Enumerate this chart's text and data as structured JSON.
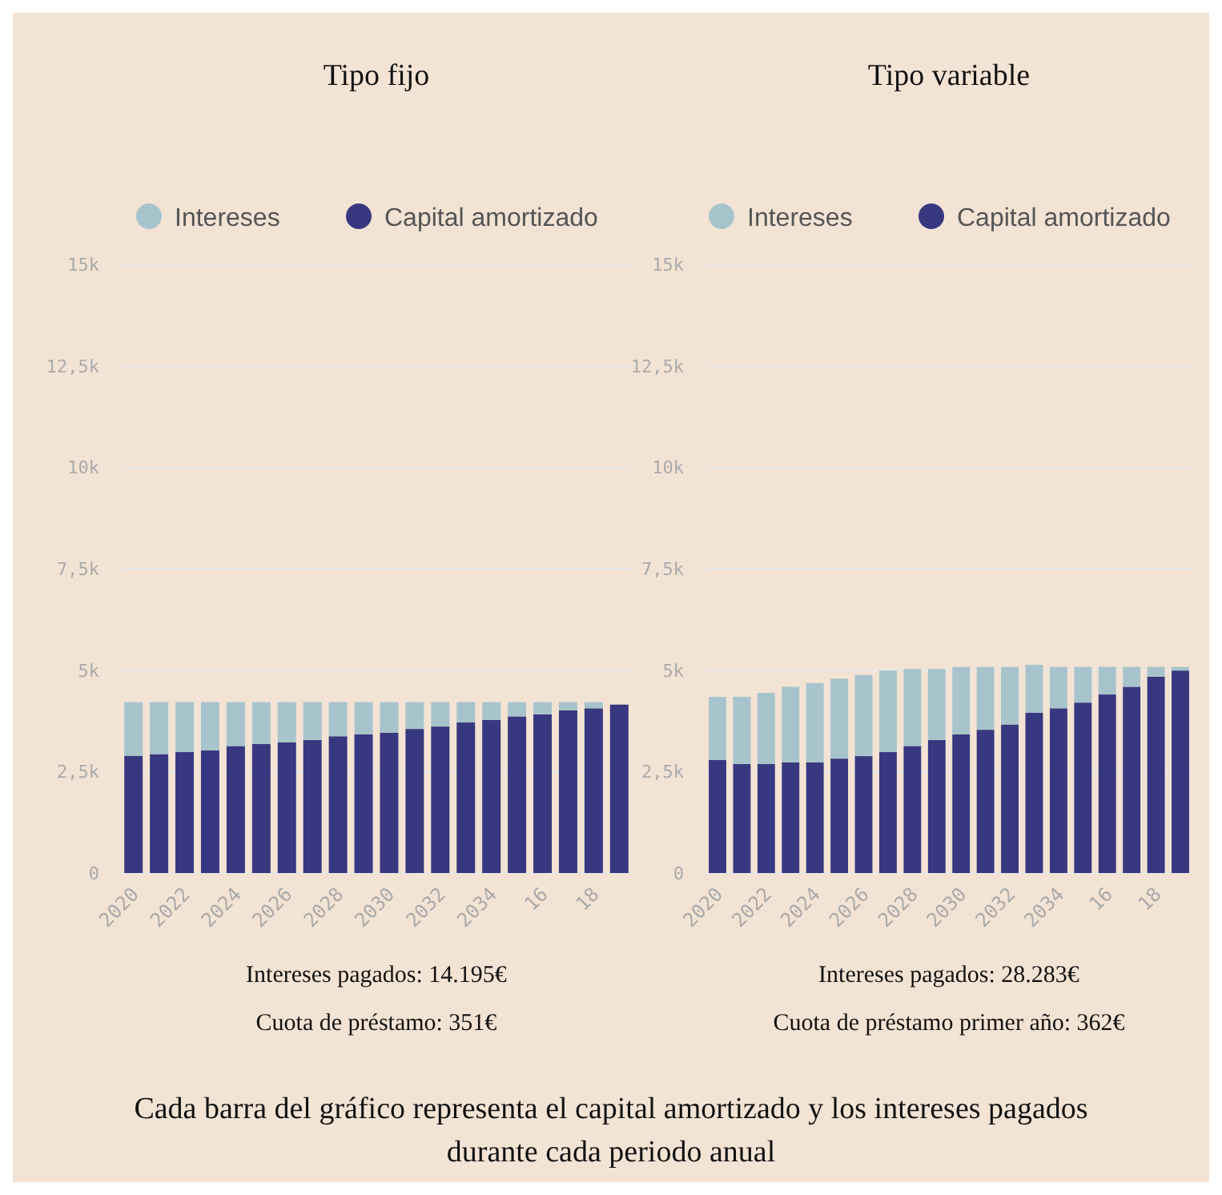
{
  "chart_data": [
    {
      "type": "bar",
      "title": "Tipo fijo",
      "categories": [
        "2020",
        null,
        "2022",
        null,
        "2024",
        null,
        "2026",
        null,
        "2028",
        null,
        "2030",
        null,
        "2032",
        null,
        "2034",
        null,
        "16",
        null,
        "18",
        null
      ],
      "stacked": true,
      "legend": "top",
      "grid": "y",
      "ylim": [
        0,
        15000
      ],
      "yticks": [
        0,
        {
          "value": 2500,
          "label": "2,5k"
        },
        {
          "value": 5000,
          "label": "5k"
        },
        {
          "value": 7500,
          "label": "7,5k"
        },
        {
          "value": 10000,
          "label": "10k"
        },
        {
          "value": 12500,
          "label": "12,5k"
        },
        {
          "value": 15000,
          "label": "15k"
        }
      ],
      "series": [
        {
          "name": "Capital amortizado",
          "color": "#383880",
          "values": [
            2890,
            2930,
            2980,
            3020,
            3130,
            3180,
            3220,
            3280,
            3370,
            3420,
            3460,
            3550,
            3610,
            3710,
            3770,
            3860,
            3910,
            4010,
            4060,
            4150
          ]
        },
        {
          "name": "Intereses",
          "color": "#a7c4cc",
          "values": [
            1320,
            1280,
            1230,
            1190,
            1080,
            1030,
            990,
            930,
            840,
            790,
            750,
            660,
            600,
            500,
            440,
            350,
            300,
            200,
            150,
            null
          ]
        }
      ],
      "annotations": [
        "Intereses pagados: 14.195€",
        "Cuota de préstamo: 351€"
      ]
    },
    {
      "type": "bar",
      "title": "Tipo variable",
      "categories": [
        "2020",
        null,
        "2022",
        null,
        "2024",
        null,
        "2026",
        null,
        "2028",
        null,
        "2030",
        null,
        "2032",
        null,
        "2034",
        null,
        "16",
        null,
        "18",
        null
      ],
      "stacked": true,
      "legend": "top",
      "grid": "y",
      "ylim": [
        0,
        15000
      ],
      "yticks": [
        0,
        {
          "value": 2500,
          "label": "2,5k"
        },
        {
          "value": 5000,
          "label": "5k"
        },
        {
          "value": 7500,
          "label": "7,5k"
        },
        {
          "value": 10000,
          "label": "10k"
        },
        {
          "value": 12500,
          "label": "12,5k"
        },
        {
          "value": 15000,
          "label": "15k"
        }
      ],
      "series": [
        {
          "name": "Capital amortizado",
          "color": "#383880",
          "values": [
            2790,
            2690,
            2690,
            2730,
            2730,
            2820,
            2880,
            2980,
            3130,
            3280,
            3420,
            3530,
            3660,
            3950,
            4060,
            4200,
            4400,
            4590,
            4840,
            4990
          ]
        },
        {
          "name": "Intereses",
          "color": "#a7c4cc",
          "values": [
            1550,
            1650,
            1750,
            1860,
            1950,
            1970,
            2000,
            2010,
            1900,
            1750,
            1660,
            1550,
            1420,
            1180,
            1020,
            880,
            680,
            490,
            240,
            90
          ]
        }
      ],
      "annotations": [
        "Intereses pagados: 28.283€",
        "Cuota de préstamo primer año: 362€"
      ]
    },
    {
      "type": "other",
      "annotations": [
        "Cada barra del gráfico representa el capital amortizado y los intereses pagados durante cada periodo anual"
      ]
    }
  ]
}
